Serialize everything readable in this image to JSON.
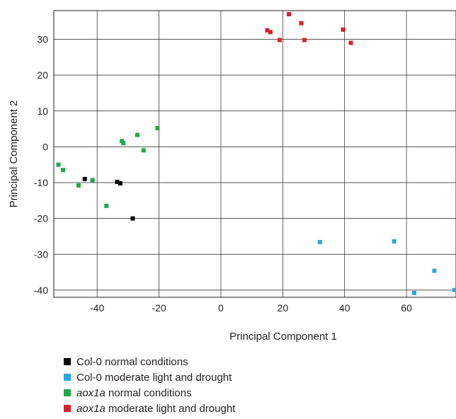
{
  "chart_data": {
    "type": "scatter",
    "xlabel": "Principal Component 1",
    "ylabel": "Principal Component 2",
    "xlim": [
      -54,
      76
    ],
    "ylim": [
      -42,
      38
    ],
    "xticks": [
      -40,
      -20,
      0,
      20,
      40,
      60
    ],
    "yticks": [
      -40,
      -30,
      -20,
      -10,
      0,
      10,
      20,
      30
    ],
    "grid": true,
    "legend_position": "bottom-left, below plot",
    "series": [
      {
        "name": "Col-0 normal conditions",
        "name_prefix": "Col-0",
        "name_suffix": " normal conditions",
        "prefix_italic": false,
        "color": "#000000",
        "points": [
          [
            -44,
            -9
          ],
          [
            -33.5,
            -9.8
          ],
          [
            -32.5,
            -10.2
          ],
          [
            -28.5,
            -20
          ]
        ]
      },
      {
        "name": "Col-0 moderate light and drought",
        "name_prefix": "Col-0",
        "name_suffix": " moderate light and drought",
        "prefix_italic": false,
        "color": "#29a9e1",
        "points": [
          [
            32,
            -26.6
          ],
          [
            56,
            -26.4
          ],
          [
            69,
            -34.6
          ],
          [
            62.5,
            -40.8
          ],
          [
            75.5,
            -40
          ]
        ]
      },
      {
        "name": "aox1a normal conditions",
        "name_prefix": "aox1a",
        "name_suffix": " normal conditions",
        "prefix_italic": true,
        "color": "#1ea84a",
        "points": [
          [
            -52.5,
            -5
          ],
          [
            -51,
            -6.5
          ],
          [
            -46,
            -10.8
          ],
          [
            -41.5,
            -9.3
          ],
          [
            -37,
            -16.5
          ],
          [
            -32,
            1.6
          ],
          [
            -31.5,
            1
          ],
          [
            -27,
            3.3
          ],
          [
            -25,
            -1
          ],
          [
            -20.5,
            5.2
          ]
        ]
      },
      {
        "name": "aox1a moderate light and drought",
        "name_prefix": "aox1a",
        "name_suffix": " moderate light and drought",
        "prefix_italic": true,
        "color": "#d62128",
        "points": [
          [
            15,
            32.5
          ],
          [
            16,
            32
          ],
          [
            19,
            29.8
          ],
          [
            22,
            37
          ],
          [
            26,
            34.5
          ],
          [
            27,
            29.8
          ],
          [
            39.5,
            32.7
          ],
          [
            42,
            29
          ]
        ]
      }
    ]
  }
}
